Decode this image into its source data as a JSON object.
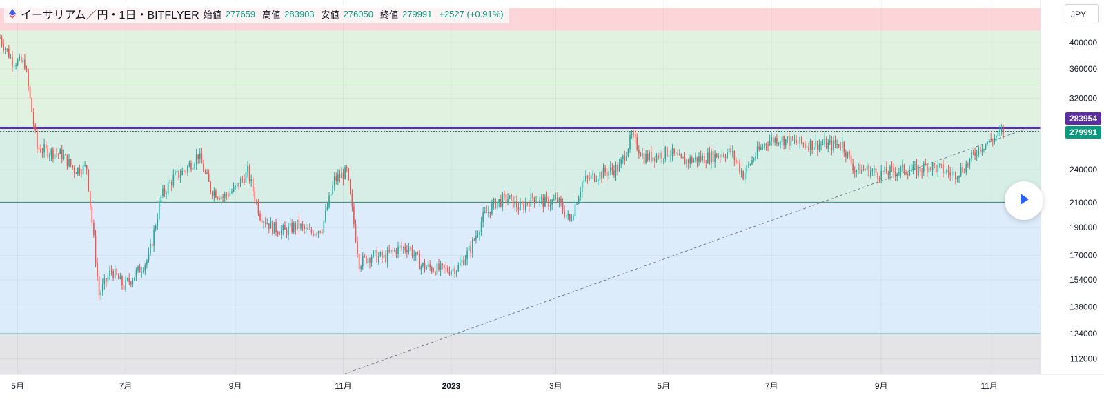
{
  "legend": {
    "symbol": "イーサリアム／円・1日・BITFLYER",
    "open_label": "始値",
    "open": "277659",
    "high_label": "高値",
    "high": "283903",
    "low_label": "安値",
    "low": "276050",
    "close_label": "終値",
    "close": "279991",
    "change": "+2527 (+0.91%)"
  },
  "currency_button": "JPY",
  "price_tags": {
    "line_price": "283954",
    "last_price": "279991"
  },
  "colors": {
    "up": "#26a69a",
    "down": "#ef5350",
    "zone_red": "#fcd5d8",
    "zone_green": "#e2f2e1",
    "zone_teal": "#d6eee6",
    "zone_blue": "#ddecfa",
    "zone_gray": "#e4e4e6",
    "line_purple": "#5b2fa3",
    "last_tag": "#089981",
    "line_tag": "#5b2fa3",
    "play_icon": "#2962ff"
  },
  "chart_data": {
    "type": "candlestick",
    "y_axis": {
      "scale": "log",
      "range": [
        100000,
        460000
      ],
      "ticks": [
        400000,
        360000,
        320000,
        240000,
        210000,
        190000,
        170000,
        154000,
        138000,
        124000,
        112000
      ],
      "tick_labels": [
        "400000",
        "360000",
        "320000",
        "240000",
        "210000",
        "190000",
        "170000",
        "154000",
        "138000",
        "124000",
        "112000"
      ]
    },
    "x_axis": {
      "range": [
        "2022-04-21",
        "2023-11-30"
      ],
      "ticks": [
        "2022-05-01",
        "2022-07-01",
        "2022-09-01",
        "2022-11-01",
        "2023-01-01",
        "2023-03-01",
        "2023-05-01",
        "2023-07-01",
        "2023-09-01",
        "2023-11-01"
      ],
      "tick_labels": [
        "5月",
        "7月",
        "9月",
        "11月",
        "2023",
        "3月",
        "5月",
        "7月",
        "9月",
        "11月"
      ]
    },
    "zones": [
      {
        "from": 420000,
        "to": 460000,
        "color": "#fcd5d8"
      },
      {
        "from": 287000,
        "to": 420000,
        "color": "#e2f2e1"
      },
      {
        "from": 210000,
        "to": 287000,
        "color": "#d6eee6"
      },
      {
        "from": 124000,
        "to": 210000,
        "color": "#ddecfa"
      },
      {
        "from": 100000,
        "to": 124000,
        "color": "#e4e4e6"
      }
    ],
    "horizontal_lines": [
      {
        "price": 340000,
        "color": "#8fc98a"
      },
      {
        "price": 283954,
        "color": "#5b2fa3"
      },
      {
        "price": 279991,
        "color": "#555555",
        "style": "dotted"
      },
      {
        "price": 210500,
        "color": "#2e8b6e"
      },
      {
        "price": 124000,
        "color": "#5ab0b0"
      }
    ],
    "trendline": {
      "from": [
        "2022-10-12",
        100000
      ],
      "to": [
        "2023-11-22",
        283000
      ]
    },
    "series_close": [
      [
        "2022-04-21",
        408000
      ],
      [
        "2022-04-28",
        372000
      ],
      [
        "2022-05-05",
        368000
      ],
      [
        "2022-05-12",
        262000
      ],
      [
        "2022-05-19",
        258000
      ],
      [
        "2022-05-26",
        255000
      ],
      [
        "2022-06-02",
        240000
      ],
      [
        "2022-06-09",
        242000
      ],
      [
        "2022-06-16",
        145000
      ],
      [
        "2022-06-23",
        160000
      ],
      [
        "2022-06-30",
        150000
      ],
      [
        "2022-07-07",
        158000
      ],
      [
        "2022-07-14",
        168000
      ],
      [
        "2022-07-21",
        215000
      ],
      [
        "2022-07-28",
        232000
      ],
      [
        "2022-08-04",
        240000
      ],
      [
        "2022-08-11",
        255000
      ],
      [
        "2022-08-18",
        222000
      ],
      [
        "2022-08-25",
        215000
      ],
      [
        "2022-09-01",
        222000
      ],
      [
        "2022-09-08",
        238000
      ],
      [
        "2022-09-15",
        200000
      ],
      [
        "2022-09-22",
        190000
      ],
      [
        "2022-09-29",
        187000
      ],
      [
        "2022-10-06",
        192000
      ],
      [
        "2022-10-13",
        186000
      ],
      [
        "2022-10-20",
        190000
      ],
      [
        "2022-10-27",
        230000
      ],
      [
        "2022-11-03",
        238000
      ],
      [
        "2022-11-10",
        165000
      ],
      [
        "2022-11-17",
        170000
      ],
      [
        "2022-11-24",
        168000
      ],
      [
        "2022-12-01",
        174000
      ],
      [
        "2022-12-08",
        176000
      ],
      [
        "2022-12-15",
        163000
      ],
      [
        "2022-12-22",
        161000
      ],
      [
        "2022-12-29",
        160000
      ],
      [
        "2023-01-05",
        162000
      ],
      [
        "2023-01-12",
        175000
      ],
      [
        "2023-01-19",
        198000
      ],
      [
        "2023-01-26",
        210000
      ],
      [
        "2023-02-02",
        214000
      ],
      [
        "2023-02-09",
        205000
      ],
      [
        "2023-02-16",
        215000
      ],
      [
        "2023-02-23",
        210000
      ],
      [
        "2023-03-02",
        212000
      ],
      [
        "2023-03-09",
        195000
      ],
      [
        "2023-03-16",
        228000
      ],
      [
        "2023-03-23",
        234000
      ],
      [
        "2023-03-30",
        238000
      ],
      [
        "2023-04-06",
        242000
      ],
      [
        "2023-04-13",
        274000
      ],
      [
        "2023-04-20",
        252000
      ],
      [
        "2023-04-27",
        254000
      ],
      [
        "2023-05-04",
        258000
      ],
      [
        "2023-05-11",
        248000
      ],
      [
        "2023-05-18",
        250000
      ],
      [
        "2023-05-25",
        252000
      ],
      [
        "2023-06-01",
        255000
      ],
      [
        "2023-06-08",
        258000
      ],
      [
        "2023-06-15",
        235000
      ],
      [
        "2023-06-22",
        255000
      ],
      [
        "2023-06-29",
        270000
      ],
      [
        "2023-07-06",
        272000
      ],
      [
        "2023-07-13",
        268000
      ],
      [
        "2023-07-20",
        266000
      ],
      [
        "2023-07-27",
        266000
      ],
      [
        "2023-08-03",
        265000
      ],
      [
        "2023-08-10",
        266000
      ],
      [
        "2023-08-17",
        240000
      ],
      [
        "2023-08-24",
        240000
      ],
      [
        "2023-08-31",
        236000
      ],
      [
        "2023-09-07",
        238000
      ],
      [
        "2023-09-14",
        240000
      ],
      [
        "2023-09-21",
        239000
      ],
      [
        "2023-09-28",
        244000
      ],
      [
        "2023-10-05",
        240000
      ],
      [
        "2023-10-12",
        235000
      ],
      [
        "2023-10-19",
        244000
      ],
      [
        "2023-10-26",
        262000
      ],
      [
        "2023-11-02",
        270000
      ],
      [
        "2023-11-09",
        279991
      ]
    ]
  }
}
